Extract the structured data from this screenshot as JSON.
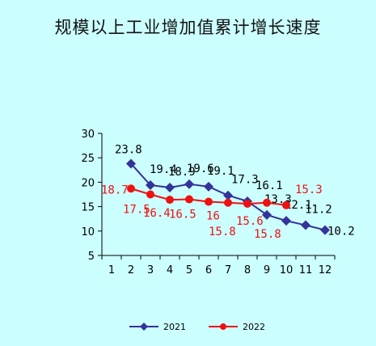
{
  "chart_data": {
    "type": "line",
    "title": "规模以上工业增加值累计增长速度",
    "xlabel": "",
    "ylabel": "",
    "x": [
      1,
      2,
      3,
      4,
      5,
      6,
      7,
      8,
      9,
      10,
      11,
      12
    ],
    "x_tick_labels": [
      "1",
      "2",
      "3",
      "4",
      "5",
      "6",
      "7",
      "8",
      "9",
      "10",
      "11",
      "12"
    ],
    "ylim": [
      5,
      30
    ],
    "y_ticks": [
      5,
      10,
      15,
      20,
      25,
      30
    ],
    "y_tick_labels": [
      "5",
      "10",
      "15",
      "20",
      "25",
      "30"
    ],
    "grid": false,
    "legend_position": "bottom",
    "series": [
      {
        "name": "2021",
        "color": "#333399",
        "marker": "diamond",
        "x": [
          2,
          3,
          4,
          5,
          6,
          7,
          8,
          9,
          10,
          11,
          12
        ],
        "values": [
          23.8,
          19.4,
          18.9,
          19.6,
          19.1,
          17.3,
          16.1,
          13.3,
          12.1,
          11.2,
          10.2
        ],
        "labels": [
          "23.8",
          "19.4",
          "18.9",
          "19.6",
          "19.1",
          "17.3",
          "16.1",
          "13.3",
          "12.1",
          "11.2",
          "10.2"
        ]
      },
      {
        "name": "2022",
        "color": "#ee1111",
        "marker": "circle",
        "x": [
          2,
          3,
          4,
          5,
          6,
          7,
          8,
          9,
          10
        ],
        "values": [
          18.7,
          17.5,
          16.4,
          16.5,
          16.0,
          15.8,
          15.6,
          15.8,
          15.3
        ],
        "labels": [
          "18.7",
          "17.5",
          "16.4",
          "16.5",
          "16",
          "15.8",
          "15.6",
          "15.8",
          "15.3"
        ]
      }
    ]
  }
}
